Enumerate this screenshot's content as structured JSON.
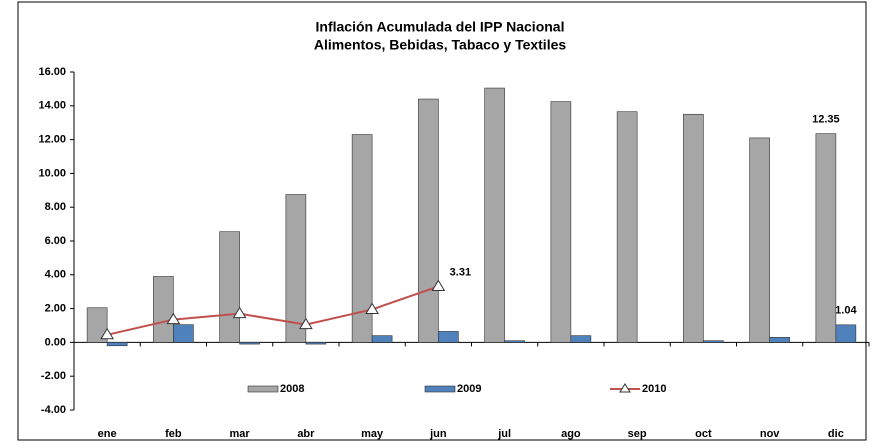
{
  "chart_data": {
    "type": "bar_line",
    "title": "Inflación Acumulada del IPP Nacional",
    "subtitle": "Alimentos, Bebidas, Tabaco y Textiles",
    "categories": [
      "ene",
      "feb",
      "mar",
      "abr",
      "may",
      "jun",
      "jul",
      "ago",
      "sep",
      "oct",
      "nov",
      "dic"
    ],
    "series": [
      {
        "name": "2008",
        "type": "bar",
        "color": "#a6a6a6",
        "values": [
          2.05,
          3.9,
          6.55,
          8.75,
          12.3,
          14.4,
          15.05,
          14.25,
          13.65,
          13.5,
          12.1,
          12.35
        ],
        "value_labels": [
          null,
          null,
          null,
          null,
          null,
          null,
          null,
          null,
          null,
          null,
          null,
          "12.35"
        ]
      },
      {
        "name": "2009",
        "type": "bar",
        "color": "#4f81bd",
        "values": [
          -0.2,
          1.05,
          -0.1,
          -0.1,
          0.4,
          0.65,
          0.1,
          0.4,
          0.0,
          0.1,
          0.3,
          1.04
        ],
        "value_labels": [
          null,
          null,
          null,
          null,
          null,
          null,
          null,
          null,
          null,
          null,
          null,
          "1.04"
        ]
      },
      {
        "name": "2010",
        "type": "line",
        "color": "#c0504d",
        "values": [
          0.45,
          1.35,
          1.7,
          1.05,
          1.95,
          3.31,
          null,
          null,
          null,
          null,
          null,
          null
        ],
        "value_labels": [
          null,
          null,
          null,
          null,
          null,
          "3.31",
          null,
          null,
          null,
          null,
          null,
          null
        ]
      }
    ],
    "ylim": [
      -4,
      16
    ],
    "yticks": [
      {
        "value": -4,
        "label": "-4.00"
      },
      {
        "value": -2,
        "label": "-2.00"
      },
      {
        "value": 0,
        "label": "0.00"
      },
      {
        "value": 2,
        "label": "2.00"
      },
      {
        "value": 4,
        "label": "4.00"
      },
      {
        "value": 6,
        "label": "6.00"
      },
      {
        "value": 8,
        "label": "8.00"
      },
      {
        "value": 10,
        "label": "10.00"
      },
      {
        "value": 12,
        "label": "12.00"
      },
      {
        "value": 14,
        "label": "14.00"
      },
      {
        "value": 16,
        "label": "16.00"
      }
    ],
    "grid": false
  }
}
